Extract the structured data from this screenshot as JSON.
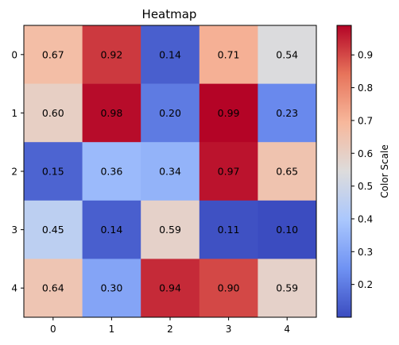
{
  "chart_data": {
    "type": "heatmap",
    "title": "Heatmap",
    "x_categories": [
      "0",
      "1",
      "2",
      "3",
      "4"
    ],
    "y_categories": [
      "0",
      "1",
      "2",
      "3",
      "4"
    ],
    "values": [
      [
        0.67,
        0.92,
        0.14,
        0.71,
        0.54
      ],
      [
        0.6,
        0.98,
        0.2,
        0.99,
        0.23
      ],
      [
        0.15,
        0.36,
        0.34,
        0.97,
        0.65
      ],
      [
        0.45,
        0.14,
        0.59,
        0.11,
        0.1
      ],
      [
        0.64,
        0.3,
        0.94,
        0.9,
        0.59
      ]
    ],
    "cell_labels": [
      [
        "0.67",
        "0.92",
        "0.14",
        "0.71",
        "0.54"
      ],
      [
        "0.60",
        "0.98",
        "0.20",
        "0.99",
        "0.23"
      ],
      [
        "0.15",
        "0.36",
        "0.34",
        "0.97",
        "0.65"
      ],
      [
        "0.45",
        "0.14",
        "0.59",
        "0.11",
        "0.10"
      ],
      [
        "0.64",
        "0.30",
        "0.94",
        "0.90",
        "0.59"
      ]
    ],
    "colormap": "coolwarm",
    "colormap_stops": [
      "#3b4cc0",
      "#6f92f3",
      "#aac7fd",
      "#dddcdc",
      "#f7b89c",
      "#e7745b",
      "#b40426"
    ],
    "color_range": [
      0.1,
      0.99
    ],
    "colorbar": {
      "label": "Color Scale",
      "ticks": [
        "0.2",
        "0.3",
        "0.4",
        "0.5",
        "0.6",
        "0.7",
        "0.8",
        "0.9"
      ]
    },
    "grid": false
  }
}
